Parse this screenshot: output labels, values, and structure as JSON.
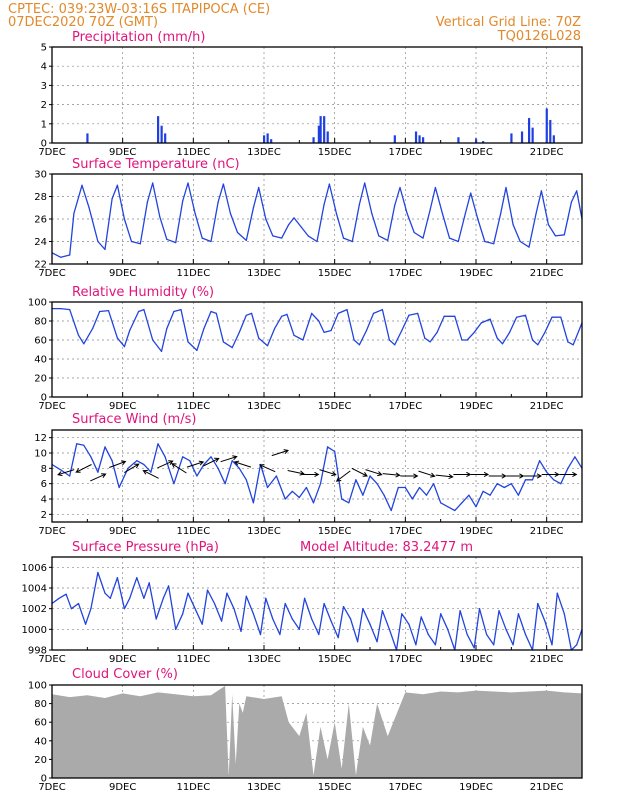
{
  "header": {
    "line1_left": "CPTEC:    039:23W-03:16S   ITAPIPOCA (CE)",
    "line2_left": "07DEC2020 70Z (GMT)",
    "line2_right": "Vertical Grid Line: 70Z",
    "line3_right": "TQ0126L028"
  },
  "colors": {
    "line": "#2244dd",
    "bar": "#1f3fe0",
    "cloud": "#aaaaaa",
    "header": "#e08a2c",
    "title": "#e0147c"
  },
  "x_tick_labels": [
    "7DEC",
    "9DEC",
    "11DEC",
    "13DEC",
    "15DEC",
    "17DEC",
    "19DEC",
    "21DEC"
  ],
  "chart_data": [
    {
      "type": "bar",
      "title": "Precipitation (mm/h)",
      "ylim": [
        0,
        5
      ],
      "yticks": [
        0,
        1,
        2,
        3,
        4,
        5
      ],
      "xlim": [
        0,
        15
      ],
      "x": [
        1.0,
        3.0,
        3.1,
        3.2,
        6.0,
        6.1,
        6.2,
        7.4,
        7.55,
        7.6,
        7.7,
        7.8,
        9.7,
        10.3,
        10.4,
        10.5,
        11.5,
        12.0,
        12.2,
        13.0,
        13.3,
        13.5,
        13.6,
        14.0,
        14.1,
        14.2
      ],
      "values": [
        0.5,
        1.4,
        0.9,
        0.5,
        0.4,
        0.5,
        0.2,
        0.3,
        0.9,
        1.4,
        1.4,
        0.6,
        0.4,
        0.6,
        0.4,
        0.3,
        0.3,
        0.2,
        0.1,
        0.5,
        0.6,
        1.3,
        0.8,
        1.8,
        1.2,
        0.4
      ]
    },
    {
      "type": "line",
      "title": "Surface Temperature (nC)",
      "ylim": [
        22,
        30
      ],
      "yticks": [
        22,
        24,
        26,
        28,
        30
      ],
      "xlim": [
        0,
        15
      ],
      "x": [
        0.0,
        0.25,
        0.5,
        0.62,
        0.85,
        1.05,
        1.3,
        1.5,
        1.7,
        1.85,
        2.05,
        2.25,
        2.5,
        2.7,
        2.85,
        3.05,
        3.25,
        3.5,
        3.7,
        3.85,
        4.05,
        4.25,
        4.5,
        4.7,
        4.85,
        5.05,
        5.25,
        5.5,
        5.7,
        5.85,
        6.05,
        6.25,
        6.5,
        6.7,
        6.85,
        7.05,
        7.25,
        7.5,
        7.7,
        7.85,
        8.05,
        8.25,
        8.5,
        8.7,
        8.85,
        9.05,
        9.25,
        9.5,
        9.7,
        9.85,
        10.05,
        10.25,
        10.5,
        10.7,
        10.85,
        11.05,
        11.25,
        11.5,
        11.7,
        11.85,
        12.05,
        12.25,
        12.5,
        12.7,
        12.85,
        13.05,
        13.25,
        13.5,
        13.7,
        13.85,
        14.05,
        14.25,
        14.5,
        14.7,
        14.85,
        15.0
      ],
      "values": [
        23.0,
        22.6,
        22.8,
        26.5,
        29.0,
        27.0,
        24.0,
        23.3,
        27.8,
        29.0,
        26.0,
        24.0,
        23.8,
        27.5,
        29.2,
        26.2,
        24.2,
        23.9,
        27.6,
        29.2,
        26.5,
        24.3,
        24.0,
        27.5,
        29.1,
        26.5,
        24.8,
        24.1,
        27.0,
        28.8,
        26.0,
        24.5,
        24.3,
        25.5,
        26.1,
        25.3,
        24.5,
        24.0,
        27.3,
        29.1,
        26.5,
        24.3,
        24.0,
        27.3,
        29.2,
        26.5,
        24.5,
        24.1,
        27.2,
        28.8,
        26.5,
        24.8,
        24.3,
        26.8,
        28.8,
        26.5,
        24.3,
        24.0,
        26.5,
        28.3,
        26.0,
        24.0,
        23.8,
        26.5,
        28.8,
        25.5,
        24.0,
        23.5,
        26.5,
        28.5,
        25.5,
        24.5,
        24.6,
        27.5,
        28.5,
        26.0
      ]
    },
    {
      "type": "line",
      "title": "Relative Humidity (%)",
      "ylim": [
        0,
        100
      ],
      "yticks": [
        0,
        20,
        40,
        60,
        80,
        100
      ],
      "xlim": [
        0,
        15
      ],
      "x": [
        0.0,
        0.25,
        0.5,
        0.75,
        0.9,
        1.15,
        1.35,
        1.6,
        1.85,
        2.05,
        2.2,
        2.45,
        2.6,
        2.85,
        3.1,
        3.25,
        3.45,
        3.65,
        3.85,
        4.1,
        4.3,
        4.5,
        4.65,
        4.85,
        5.1,
        5.3,
        5.5,
        5.65,
        5.85,
        6.1,
        6.3,
        6.5,
        6.65,
        6.85,
        7.1,
        7.35,
        7.55,
        7.7,
        7.9,
        8.1,
        8.35,
        8.55,
        8.7,
        8.9,
        9.1,
        9.35,
        9.55,
        9.7,
        9.9,
        10.1,
        10.35,
        10.55,
        10.7,
        10.9,
        11.1,
        11.4,
        11.6,
        11.75,
        11.95,
        12.15,
        12.4,
        12.6,
        12.75,
        12.95,
        13.15,
        13.4,
        13.6,
        13.75,
        13.95,
        14.15,
        14.4,
        14.6,
        14.75,
        15.0
      ],
      "values": [
        93,
        93,
        92,
        65,
        56,
        72,
        90,
        91,
        62,
        53,
        70,
        90,
        92,
        60,
        48,
        72,
        90,
        92,
        58,
        49,
        72,
        90,
        88,
        58,
        52,
        68,
        86,
        88,
        62,
        54,
        72,
        85,
        87,
        65,
        60,
        88,
        80,
        68,
        70,
        88,
        92,
        60,
        55,
        70,
        88,
        92,
        60,
        55,
        70,
        86,
        88,
        62,
        58,
        68,
        85,
        85,
        60,
        60,
        68,
        78,
        82,
        62,
        56,
        68,
        84,
        86,
        60,
        55,
        68,
        84,
        84,
        58,
        55,
        78
      ]
    },
    {
      "type": "line",
      "title": "Surface Wind (m/s)",
      "ylim": [
        1,
        13
      ],
      "yticks": [
        2,
        4,
        6,
        8,
        10,
        12
      ],
      "xlim": [
        0,
        15
      ],
      "x": [
        0.0,
        0.25,
        0.5,
        0.7,
        0.9,
        1.1,
        1.3,
        1.5,
        1.7,
        1.9,
        2.15,
        2.4,
        2.6,
        2.8,
        3.0,
        3.2,
        3.45,
        3.7,
        3.9,
        4.1,
        4.3,
        4.5,
        4.7,
        4.9,
        5.1,
        5.3,
        5.5,
        5.7,
        5.9,
        6.1,
        6.35,
        6.6,
        6.8,
        7.0,
        7.2,
        7.4,
        7.6,
        7.8,
        8.0,
        8.2,
        8.4,
        8.6,
        8.8,
        9.0,
        9.2,
        9.4,
        9.6,
        9.8,
        10.0,
        10.2,
        10.4,
        10.6,
        10.8,
        11.0,
        11.2,
        11.4,
        11.6,
        11.8,
        12.0,
        12.2,
        12.4,
        12.6,
        12.8,
        13.0,
        13.2,
        13.4,
        13.6,
        13.8,
        14.0,
        14.2,
        14.4,
        14.6,
        14.8,
        15.0
      ],
      "values": [
        8.5,
        7.8,
        7.0,
        11.2,
        11.0,
        9.5,
        7.5,
        10.8,
        9.0,
        5.5,
        8.0,
        9.0,
        8.5,
        7.5,
        11.2,
        9.5,
        6.0,
        9.5,
        9.0,
        7.0,
        8.5,
        9.5,
        8.0,
        6.0,
        9.0,
        8.0,
        6.5,
        3.5,
        8.5,
        5.5,
        7.0,
        4.0,
        5.0,
        4.2,
        5.5,
        3.5,
        6.0,
        10.8,
        10.2,
        4.0,
        3.5,
        6.5,
        4.5,
        7.0,
        6.0,
        4.5,
        2.5,
        5.5,
        5.5,
        4.0,
        5.5,
        4.5,
        6.0,
        3.5,
        3.0,
        2.5,
        3.5,
        4.5,
        3.0,
        5.0,
        4.5,
        6.0,
        5.5,
        6.0,
        4.5,
        6.5,
        6.5,
        9.0,
        7.5,
        6.5,
        6.0,
        8.0,
        9.5,
        8.0
      ],
      "barbs": [
        [
          0.4,
          7.5,
          -0.95,
          0.3
        ],
        [
          0.9,
          8.0,
          -0.9,
          0.45
        ],
        [
          1.3,
          6.8,
          0.9,
          -0.4
        ],
        [
          1.85,
          8.5,
          0.95,
          -0.35
        ],
        [
          2.25,
          8.0,
          0.85,
          -0.5
        ],
        [
          2.8,
          7.2,
          -0.9,
          -0.45
        ],
        [
          3.2,
          8.5,
          0.9,
          -0.4
        ],
        [
          3.6,
          8.0,
          -0.85,
          -0.55
        ],
        [
          4.05,
          8.5,
          0.95,
          -0.3
        ],
        [
          4.5,
          8.8,
          0.9,
          -0.45
        ],
        [
          5.0,
          9.2,
          0.95,
          -0.3
        ],
        [
          5.4,
          8.5,
          -0.95,
          -0.3
        ],
        [
          6.1,
          8.0,
          -0.9,
          -0.4
        ],
        [
          6.45,
          10.0,
          0.95,
          -0.3
        ],
        [
          6.9,
          7.5,
          0.95,
          0.2
        ],
        [
          7.3,
          7.2,
          1.0,
          0.0
        ],
        [
          7.8,
          7.5,
          0.95,
          0.3
        ],
        [
          8.25,
          7.0,
          -0.8,
          0.6
        ],
        [
          8.7,
          7.5,
          0.9,
          0.45
        ],
        [
          9.1,
          7.5,
          0.95,
          0.3
        ],
        [
          9.6,
          7.2,
          1.0,
          0.1
        ],
        [
          10.1,
          7.0,
          1.0,
          0.0
        ],
        [
          10.6,
          7.3,
          0.95,
          0.3
        ],
        [
          11.1,
          7.0,
          1.0,
          0.1
        ],
        [
          11.6,
          7.2,
          1.0,
          0.0
        ],
        [
          12.1,
          7.2,
          1.0,
          0.0
        ],
        [
          12.6,
          7.0,
          1.0,
          0.0
        ],
        [
          13.1,
          7.0,
          1.0,
          0.0
        ],
        [
          13.6,
          7.0,
          1.0,
          0.0
        ],
        [
          14.1,
          7.2,
          1.0,
          0.0
        ],
        [
          14.6,
          7.2,
          1.0,
          0.0
        ]
      ]
    },
    {
      "type": "line",
      "title": "Surface Pressure (hPa)",
      "annotation": "Model Altitude: 83.2477 m",
      "ylim": [
        998,
        1007
      ],
      "yticks": [
        998,
        1000,
        1002,
        1004,
        1006
      ],
      "xlim": [
        0,
        15
      ],
      "x": [
        0.0,
        0.2,
        0.4,
        0.55,
        0.75,
        0.95,
        1.1,
        1.3,
        1.5,
        1.65,
        1.85,
        2.05,
        2.2,
        2.4,
        2.6,
        2.75,
        2.95,
        3.15,
        3.3,
        3.5,
        3.7,
        3.85,
        4.05,
        4.25,
        4.4,
        4.6,
        4.8,
        4.95,
        5.15,
        5.35,
        5.5,
        5.7,
        5.9,
        6.05,
        6.25,
        6.45,
        6.6,
        6.8,
        7.0,
        7.15,
        7.35,
        7.55,
        7.7,
        7.9,
        8.1,
        8.25,
        8.45,
        8.65,
        8.8,
        9.0,
        9.2,
        9.35,
        9.55,
        9.75,
        9.9,
        10.1,
        10.3,
        10.45,
        10.65,
        10.85,
        11.0,
        11.2,
        11.4,
        11.55,
        11.75,
        11.95,
        12.1,
        12.3,
        12.5,
        12.65,
        12.85,
        13.05,
        13.2,
        13.4,
        13.6,
        13.75,
        13.95,
        14.15,
        14.3,
        14.5,
        14.7,
        14.85,
        15.0
      ],
      "values": [
        1002.5,
        1003.0,
        1003.4,
        1002.0,
        1002.5,
        1000.5,
        1002.0,
        1005.5,
        1003.5,
        1003.0,
        1005.0,
        1002.0,
        1003.0,
        1005.0,
        1003.0,
        1004.5,
        1001.0,
        1003.0,
        1004.2,
        1000.0,
        1001.5,
        1003.5,
        1002.0,
        1000.5,
        1003.8,
        1002.5,
        1000.8,
        1003.5,
        1002.0,
        999.8,
        1003.2,
        1001.5,
        999.5,
        1003.0,
        1001.0,
        999.5,
        1002.5,
        1001.0,
        1000.0,
        1003.0,
        1001.0,
        999.5,
        1002.5,
        1000.8,
        999.2,
        1002.2,
        1001.0,
        998.8,
        1002.0,
        1000.5,
        998.8,
        1001.8,
        1000.0,
        998.0,
        1001.5,
        1000.5,
        998.5,
        1001.2,
        999.5,
        998.5,
        1001.5,
        1000.0,
        998.0,
        1001.8,
        999.5,
        998.2,
        1002.0,
        999.5,
        998.5,
        1001.8,
        1000.0,
        998.5,
        1001.5,
        999.5,
        998.0,
        1002.5,
        1000.8,
        998.5,
        1003.5,
        1001.5,
        998.0,
        998.5,
        1000.0
      ]
    },
    {
      "type": "area",
      "title": "Cloud Cover (%)",
      "ylim": [
        0,
        100
      ],
      "yticks": [
        0,
        20,
        40,
        60,
        80,
        100
      ],
      "xlim": [
        0,
        15
      ],
      "x": [
        0.0,
        0.5,
        1.0,
        1.5,
        2.0,
        2.5,
        3.0,
        3.5,
        4.0,
        4.5,
        4.9,
        5.0,
        5.1,
        5.2,
        5.3,
        5.4,
        5.5,
        6.0,
        6.5,
        6.7,
        7.0,
        7.2,
        7.4,
        7.6,
        7.8,
        8.0,
        8.2,
        8.4,
        8.6,
        8.8,
        9.0,
        9.2,
        9.5,
        10.0,
        10.5,
        11.0,
        11.5,
        12.0,
        12.5,
        13.0,
        13.5,
        14.0,
        14.5,
        15.0
      ],
      "values": [
        90,
        87,
        89,
        86,
        91,
        88,
        92,
        90,
        88,
        89,
        99,
        2,
        90,
        15,
        80,
        70,
        88,
        85,
        88,
        60,
        45,
        70,
        3,
        55,
        20,
        60,
        10,
        80,
        3,
        55,
        35,
        80,
        45,
        92,
        90,
        93,
        92,
        94,
        93,
        92,
        93,
        94,
        92,
        91
      ]
    }
  ],
  "panels": [
    {
      "title": "Precipitation (mm/h)"
    },
    {
      "title": "Surface Temperature (nC)"
    },
    {
      "title": "Relative Humidity (%)"
    },
    {
      "title": "Surface Wind (m/s)"
    },
    {
      "title": "Surface Pressure (hPa)",
      "annotation": "Model Altitude: 83.2477 m"
    },
    {
      "title": "Cloud Cover (%)"
    }
  ]
}
